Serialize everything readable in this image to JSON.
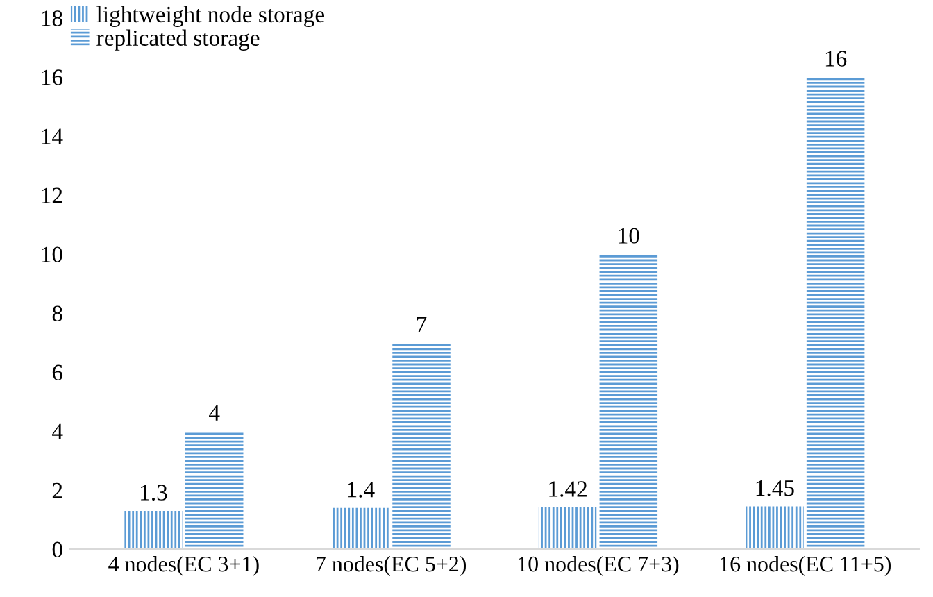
{
  "chart_data": {
    "type": "bar",
    "categories": [
      "4 nodes(EC 3+1)",
      "7 nodes(EC 5+2)",
      "10 nodes(EC 7+3)",
      "16 nodes(EC 11+5)"
    ],
    "series": [
      {
        "name": "lightweight node storage",
        "color": "#5b9bd5",
        "values": [
          1.3,
          1.4,
          1.42,
          1.45
        ]
      },
      {
        "name": "replicated storage",
        "color": "#5b9bd5",
        "values": [
          4,
          7,
          10,
          16
        ]
      }
    ],
    "ylim": [
      0,
      18
    ],
    "yticks": [
      0,
      2,
      4,
      6,
      8,
      10,
      12,
      14,
      16,
      18
    ],
    "data_labels": true,
    "grid": false,
    "legend": "top left"
  }
}
